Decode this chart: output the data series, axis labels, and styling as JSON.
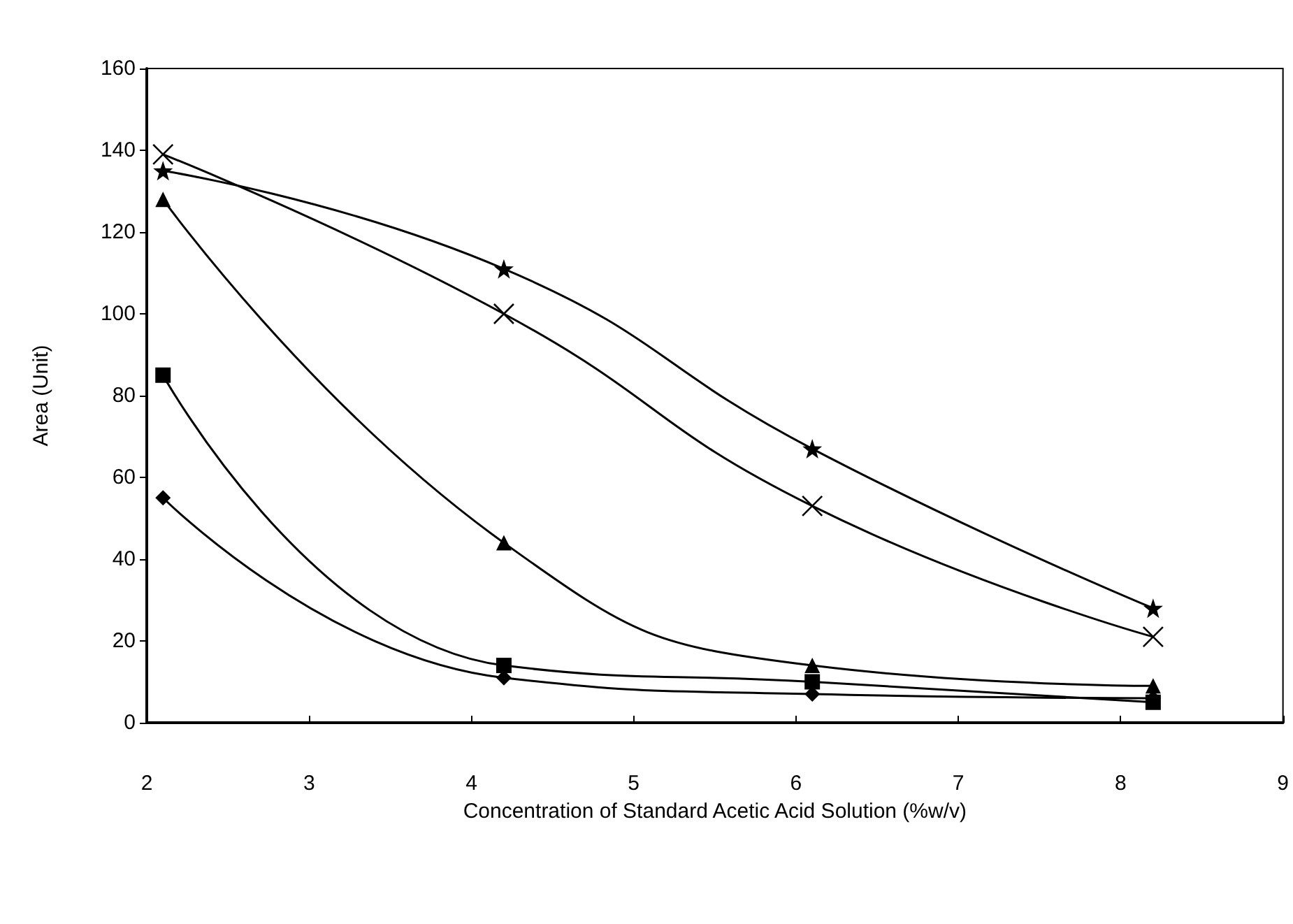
{
  "chart_data": {
    "type": "line",
    "xlabel": "Concentration of Standard Acetic Acid Solution (%w/v)",
    "ylabel": "Area (Unit)",
    "x": [
      2.1,
      4.2,
      6.1,
      8.2
    ],
    "series": [
      {
        "color": "#000000",
        "marker": "diamond",
        "values": [
          55,
          11,
          7,
          6
        ]
      },
      {
        "color": "#000000",
        "marker": "square",
        "values": [
          85,
          14,
          10,
          5
        ]
      },
      {
        "color": "#000000",
        "marker": "triangle",
        "values": [
          128,
          44,
          14,
          9
        ]
      },
      {
        "color": "#000000",
        "marker": "cross",
        "values": [
          139,
          100,
          53,
          21
        ]
      },
      {
        "color": "#000000",
        "marker": "star",
        "values": [
          135,
          111,
          67,
          28
        ]
      }
    ],
    "xlim": [
      2,
      9
    ],
    "xticks": [
      2,
      3,
      4,
      5,
      6,
      7,
      8,
      9
    ],
    "ylim": [
      0,
      160
    ],
    "yticks": [
      0,
      20,
      40,
      60,
      80,
      100,
      120,
      140,
      160
    ],
    "grid": false,
    "line_style": "solid"
  }
}
